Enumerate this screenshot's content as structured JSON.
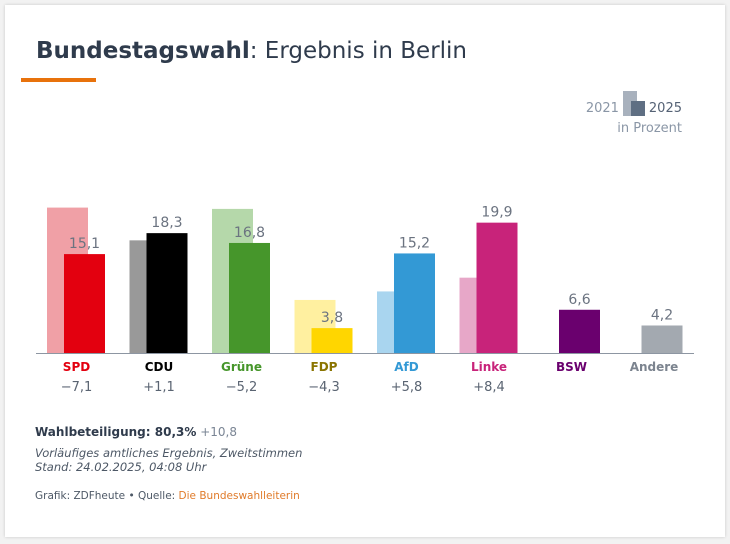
{
  "header": {
    "title_bold": "Bundestagswahl",
    "title_rest": ": Ergebnis in Berlin",
    "accent_color": "#e8720c"
  },
  "legend": {
    "label_old": "2021",
    "label_new": "2025",
    "unit": "in Prozent",
    "old_color": "#a8b1bd",
    "new_color": "#5f6f83"
  },
  "chart_data": {
    "type": "bar",
    "title": "Bundestagswahl: Ergebnis in Berlin",
    "ylabel": "in Prozent",
    "ylim": [
      0,
      25
    ],
    "series": [
      {
        "name": "2021",
        "values": [
          22.2,
          17.2,
          22.0,
          8.1,
          9.4,
          11.5,
          null,
          null
        ]
      },
      {
        "name": "2025",
        "values": [
          15.1,
          18.3,
          16.8,
          3.8,
          15.2,
          19.9,
          6.6,
          4.2
        ]
      }
    ],
    "categories": [
      "SPD",
      "CDU",
      "Grüne",
      "FDP",
      "AfD",
      "Linke",
      "BSW",
      "Andere"
    ],
    "value_labels": [
      "15,1",
      "18,3",
      "16,8",
      "3,8",
      "15,2",
      "19,9",
      "6,6",
      "4,2"
    ],
    "changes": [
      "−7,1",
      "+1,1",
      "−5,2",
      "−4,3",
      "+5,8",
      "+8,4",
      "",
      ""
    ],
    "colors_new": [
      "#e3000f",
      "#000000",
      "#46962b",
      "#ffd600",
      "#3399d5",
      "#c8237a",
      "#6a006e",
      "#a3a9b0"
    ],
    "colors_old": [
      "#f0a0a6",
      "#999999",
      "#b5d8aa",
      "#fff0a0",
      "#a9d5ef",
      "#e7a7c8",
      "",
      ""
    ],
    "label_colors": [
      "#e3000f",
      "#000000",
      "#46962b",
      "#8a7400",
      "#3399d5",
      "#c8237a",
      "#6a006e",
      "#7c848f"
    ]
  },
  "footer": {
    "turnout_label": "Wahlbeteiligung: 80,3%",
    "turnout_delta": "+10,8",
    "note_line1": "Vorläufiges amtliches Ergebnis, Zweitstimmen",
    "note_line2": "Stand: 24.02.2025, 04:08 Uhr",
    "source_prefix": "Grafik: ZDFheute • Quelle: ",
    "source_link": "Die Bundeswahlleiterin"
  }
}
